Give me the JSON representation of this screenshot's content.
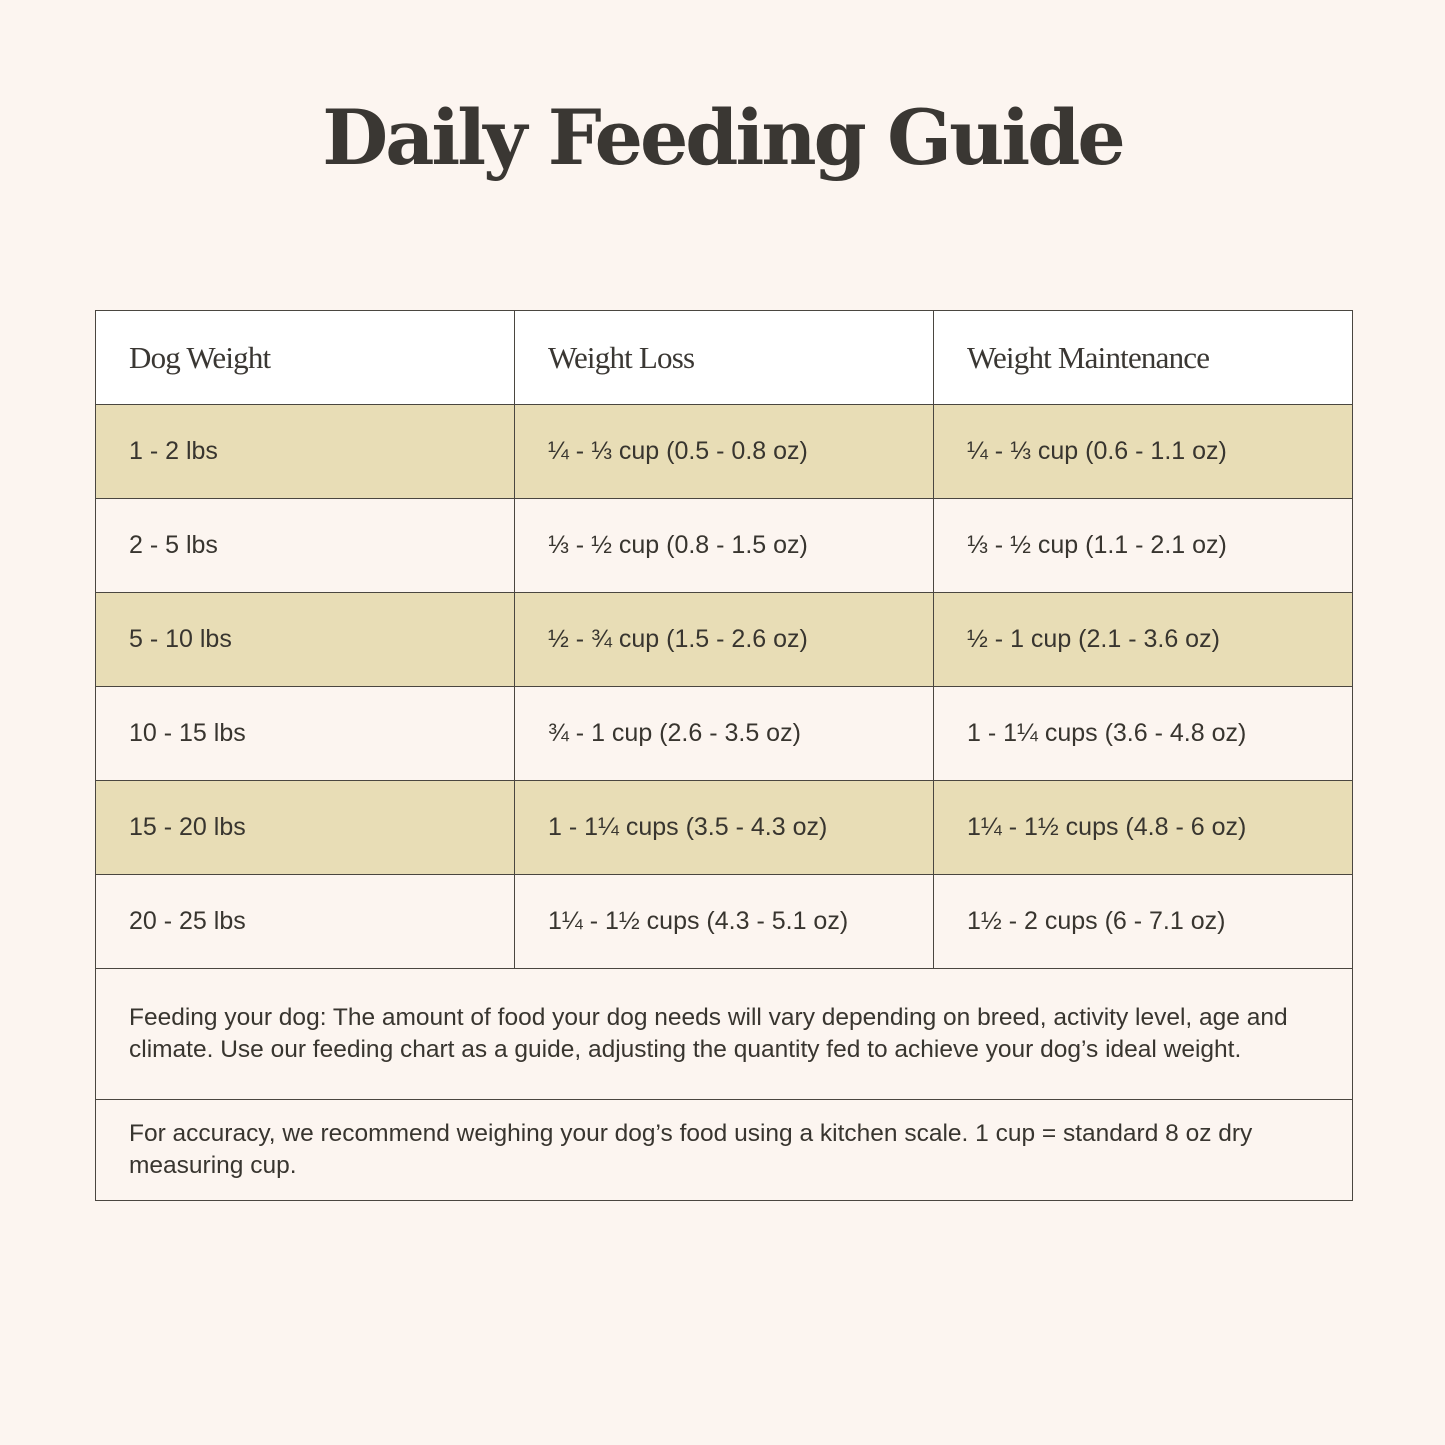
{
  "page": {
    "title": "Daily Feeding Guide"
  },
  "table": {
    "headers": [
      "Dog Weight",
      "Weight Loss",
      "Weight Maintenance"
    ],
    "rows": [
      {
        "dog_weight": "1 - 2 lbs",
        "weight_loss": "¼ - ⅓ cup (0.5 - 0.8 oz)",
        "weight_maintenance": "¼ - ⅓ cup (0.6 - 1.1 oz)",
        "striped": true
      },
      {
        "dog_weight": "2 - 5 lbs",
        "weight_loss": "⅓ - ½ cup (0.8 - 1.5 oz)",
        "weight_maintenance": "⅓ - ½ cup (1.1 - 2.1 oz)",
        "striped": false
      },
      {
        "dog_weight": "5 - 10 lbs",
        "weight_loss": "½ - ¾ cup (1.5 - 2.6 oz)",
        "weight_maintenance": "½ - 1 cup (2.1 - 3.6 oz)",
        "striped": true
      },
      {
        "dog_weight": "10 - 15 lbs",
        "weight_loss": "¾ - 1 cup (2.6 - 3.5 oz)",
        "weight_maintenance": "1 - 1¼ cups (3.6 - 4.8 oz)",
        "striped": false
      },
      {
        "dog_weight": "15 - 20 lbs",
        "weight_loss": "1 - 1¼ cups (3.5 - 4.3 oz)",
        "weight_maintenance": "1¼ - 1½ cups (4.8 - 6 oz)",
        "striped": true
      },
      {
        "dog_weight": "20 - 25 lbs",
        "weight_loss": "1¼ - 1½ cups (4.3 - 5.1 oz)",
        "weight_maintenance": "1½ - 2 cups (6 - 7.1 oz)",
        "striped": false
      }
    ],
    "notes": [
      "Feeding your dog: The amount of food your dog needs will vary depending on breed, activity level, age and climate. Use our feeding chart as a guide, adjusting the quantity fed to achieve your dog’s ideal weight.",
      "For accuracy, we recommend weighing your dog’s food using a kitchen scale. 1 cup = standard 8 oz dry measuring cup."
    ]
  },
  "colors": {
    "background": "#fcf5f0",
    "header_background": "#ffffff",
    "stripe": "#e8ddb6",
    "text": "#38352f",
    "border": "#4a4640"
  }
}
